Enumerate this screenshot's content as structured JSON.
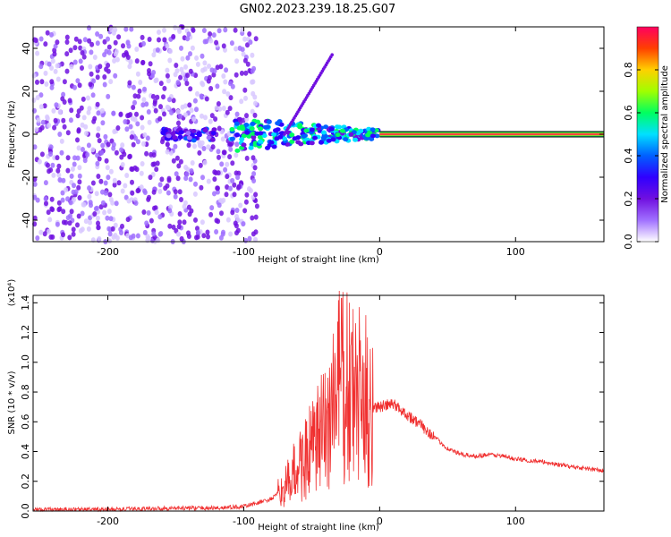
{
  "title": "GN02.2023.239.18.25.G07",
  "chart_data": [
    {
      "type": "heatmap",
      "name": "spectrogram",
      "xlabel": "Height of straight line (km)",
      "ylabel": "Frequency (Hz)",
      "xlim": [
        -255,
        165
      ],
      "ylim": [
        -50,
        50
      ],
      "xticks": [
        -200,
        -100,
        0,
        100
      ],
      "xtick_labels": [
        "-200",
        "-100",
        "0",
        "100"
      ],
      "yticks": [
        -40,
        -20,
        0,
        20,
        40
      ],
      "ytick_labels": [
        "-40",
        "-20",
        "0",
        "20",
        "40"
      ],
      "colorbar": {
        "label": "Normalized spectral amplitude",
        "range": [
          0,
          1
        ],
        "ticks": [
          0.0,
          0.2,
          0.4,
          0.6,
          0.8
        ],
        "tick_labels": [
          "0.0",
          "0.2",
          "0.4",
          "0.6",
          "0.8"
        ],
        "colors": [
          "#ffffff",
          "#a070ff",
          "#7010e0",
          "#3000ff",
          "#0060ff",
          "#00e0ff",
          "#00ff60",
          "#a0ff00",
          "#ffd000",
          "#ff4000",
          "#ff0060"
        ]
      },
      "features": [
        {
          "name": "noise-region",
          "x_range": [
            -255,
            -100
          ],
          "y_range": [
            -50,
            50
          ],
          "amplitude": 0.1
        },
        {
          "name": "sparse-noise",
          "x_range": [
            -100,
            -90
          ],
          "y_range": [
            -50,
            50
          ],
          "amplitude": 0.05
        },
        {
          "name": "signal-band-faint",
          "x_range": [
            -160,
            -120
          ],
          "y_center": 0,
          "amplitude": 0.3
        },
        {
          "name": "signal-band-turbulent",
          "x_range": [
            -110,
            0
          ],
          "y_center": 0,
          "amplitude": 0.5
        },
        {
          "name": "signal-band-strong",
          "x_range": [
            0,
            165
          ],
          "y_center": 0,
          "amplitude": 1.0
        },
        {
          "name": "diagonal-streak",
          "x_range": [
            -70,
            -35
          ],
          "y_range": [
            0,
            37
          ],
          "amplitude": 0.3
        }
      ]
    },
    {
      "type": "line",
      "name": "snr",
      "xlabel": "Height of straight line (km)",
      "ylabel": "SNR (10 * v/v)",
      "yscale_label": "(x10⁴)",
      "xlim": [
        -255,
        165
      ],
      "ylim": [
        0,
        1.45
      ],
      "xticks": [
        -200,
        -100,
        0,
        100
      ],
      "xtick_labels": [
        "-200",
        "-100",
        "0",
        "100"
      ],
      "yticks": [
        0.0,
        0.2,
        0.4,
        0.6,
        0.8,
        1.0,
        1.2,
        1.4
      ],
      "ytick_labels": [
        "0.0",
        "0.2",
        "0.4",
        "0.6",
        "0.8",
        "1.0",
        "1.2",
        "1.4"
      ],
      "color": "#f03030",
      "x": [
        -255,
        -200,
        -150,
        -120,
        -100,
        -80,
        -70,
        -60,
        -50,
        -40,
        -35,
        -30,
        -25,
        -20,
        -15,
        -10,
        -5,
        0,
        10,
        20,
        30,
        40,
        50,
        60,
        70,
        80,
        90,
        100,
        120,
        140,
        165
      ],
      "y": [
        0.01,
        0.01,
        0.02,
        0.02,
        0.03,
        0.08,
        0.15,
        0.3,
        0.4,
        0.55,
        0.7,
        0.85,
        0.8,
        0.78,
        0.75,
        0.72,
        0.7,
        0.7,
        0.72,
        0.65,
        0.58,
        0.5,
        0.42,
        0.38,
        0.37,
        0.38,
        0.37,
        0.35,
        0.33,
        0.3,
        0.27
      ]
    }
  ]
}
